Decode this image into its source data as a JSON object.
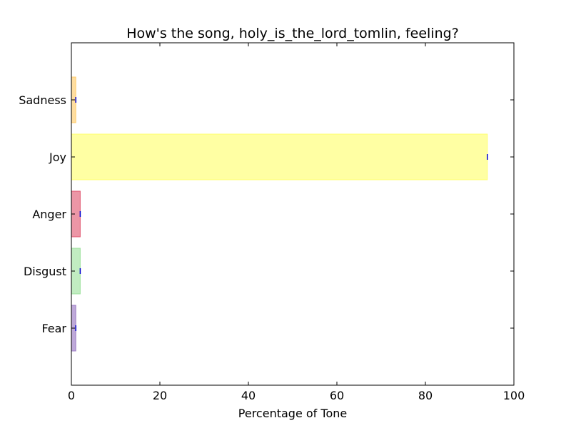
{
  "chart_data": {
    "type": "bar",
    "orientation": "horizontal",
    "title": "How's the song, holy_is_the_lord_tomlin, feeling?",
    "xlabel": "Percentage of Tone",
    "ylabel": "",
    "xlim": [
      0,
      100
    ],
    "xticks": [
      0,
      20,
      40,
      60,
      80,
      100
    ],
    "categories": [
      "Fear",
      "Disgust",
      "Anger",
      "Joy",
      "Sadness"
    ],
    "values": [
      1,
      2,
      2,
      94,
      1
    ],
    "colors": [
      "#9370c0",
      "#98e098",
      "#e0506a",
      "#ffff66",
      "#ffc860"
    ],
    "bar_opacity": 0.6,
    "error_bar_color": "#0000cc",
    "grid": false,
    "legend": "none"
  }
}
